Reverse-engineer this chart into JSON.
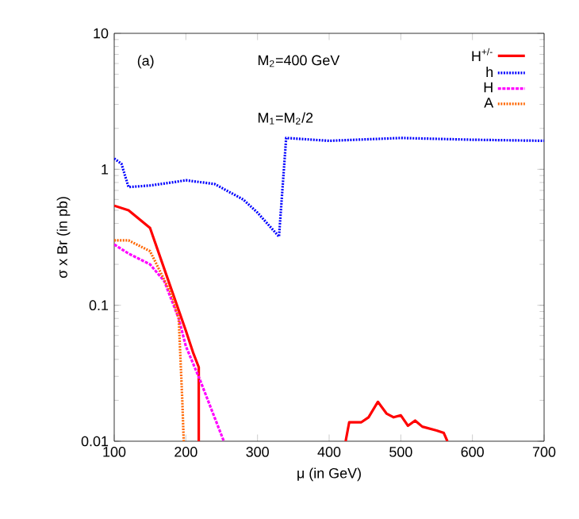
{
  "chart_data": {
    "type": "line",
    "xlabel": "μ (in GeV)",
    "ylabel": "σ x Br (in pb)",
    "log": "y",
    "xlim": [
      100,
      700
    ],
    "xticks": [
      100,
      200,
      300,
      400,
      500,
      600,
      700
    ],
    "ylim": [
      0.01,
      10
    ],
    "yticks": [
      0.01,
      0.1,
      1,
      10
    ],
    "legend": "top right",
    "marker": "none",
    "grid": false,
    "annotations": [
      "(a)",
      "M$_{2}$=400 GeV",
      "M$_{1}$=M$_{2}$/2"
    ],
    "series": [
      {
        "name": "H$^{+/-}$",
        "color": "#ff0000",
        "line_style": "solid",
        "x": [
          100,
          120,
          150,
          180,
          200,
          210,
          218,
          218,
          null,
          423,
          428,
          445,
          455,
          468,
          480,
          490,
          500,
          510,
          520,
          530,
          550,
          560,
          565
        ],
        "values": [
          0.54,
          0.5,
          0.37,
          0.13,
          0.065,
          0.045,
          0.035,
          0.01,
          null,
          0.01,
          0.0138,
          0.0138,
          0.015,
          0.0195,
          0.016,
          0.015,
          0.0155,
          0.013,
          0.0142,
          0.0128,
          0.012,
          0.0115,
          0.01
        ]
      },
      {
        "name": "h",
        "color": "#0000ff",
        "line_style": "dotted",
        "x": [
          100,
          110,
          120,
          150,
          180,
          200,
          240,
          280,
          300,
          330,
          340,
          400,
          500,
          600,
          700
        ],
        "values": [
          1.2,
          1.1,
          0.74,
          0.76,
          0.8,
          0.83,
          0.78,
          0.6,
          0.48,
          0.32,
          1.7,
          1.62,
          1.7,
          1.65,
          1.62
        ]
      },
      {
        "name": "H",
        "color": "#ff00ff",
        "line_style": "dashed",
        "x": [
          100,
          120,
          150,
          170,
          190,
          200,
          220,
          240,
          253
        ],
        "values": [
          0.28,
          0.24,
          0.2,
          0.15,
          0.08,
          0.05,
          0.028,
          0.015,
          0.01
        ]
      },
      {
        "name": "A",
        "color": "#ff6600",
        "line_style": "dotted",
        "x": [
          100,
          120,
          150,
          180,
          190,
          195,
          197
        ],
        "values": [
          0.3,
          0.3,
          0.25,
          0.12,
          0.08,
          0.02,
          0.01
        ]
      }
    ]
  }
}
